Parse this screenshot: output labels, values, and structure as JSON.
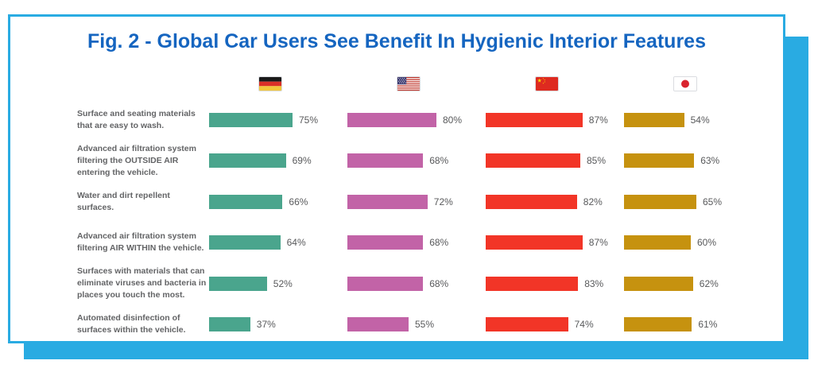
{
  "figure": {
    "title": "Fig. 2 - Global Car Users See Benefit In Hygienic Interior Features"
  },
  "colors": {
    "frame_and_shadow": "#29ABE2",
    "title_text": "#1565C0",
    "category_text": "#636466",
    "value_text": "#58595B",
    "germany_bar": "#4AA58D",
    "usa_bar": "#C263A7",
    "china_bar": "#F23527",
    "japan_bar": "#C6920F"
  },
  "chart_data": {
    "type": "bar",
    "orientation": "horizontal",
    "unit": "%",
    "xlim": [
      0,
      100
    ],
    "grid": false,
    "value_labels": true,
    "legend": "country flags as column headers (Germany, United States, China, Japan)",
    "categories": [
      "Surface and seating materials\nthat are easy to wash.",
      "Advanced air filtration system\nfiltering the OUTSIDE AIR\nentering the vehicle.",
      "Water and dirt repellent\nsurfaces.",
      "Advanced air filtration system\nfiltering AIR WITHIN the vehicle.",
      "Surfaces with materials that can\neliminate viruses and bacteria in\nplaces you touch the most.",
      "Automated disinfection of\nsurfaces within the vehicle."
    ],
    "series": [
      {
        "name": "Germany",
        "icon": "germany-flag-icon",
        "color": "#4AA58D",
        "values": [
          75,
          69,
          66,
          64,
          52,
          37
        ]
      },
      {
        "name": "United States",
        "icon": "usa-flag-icon",
        "color": "#C263A7",
        "values": [
          80,
          68,
          72,
          68,
          68,
          55
        ]
      },
      {
        "name": "China",
        "icon": "china-flag-icon",
        "color": "#F23527",
        "values": [
          87,
          85,
          82,
          87,
          83,
          74
        ]
      },
      {
        "name": "Japan",
        "icon": "japan-flag-icon",
        "color": "#C6920F",
        "values": [
          54,
          63,
          65,
          60,
          62,
          61
        ]
      }
    ]
  }
}
